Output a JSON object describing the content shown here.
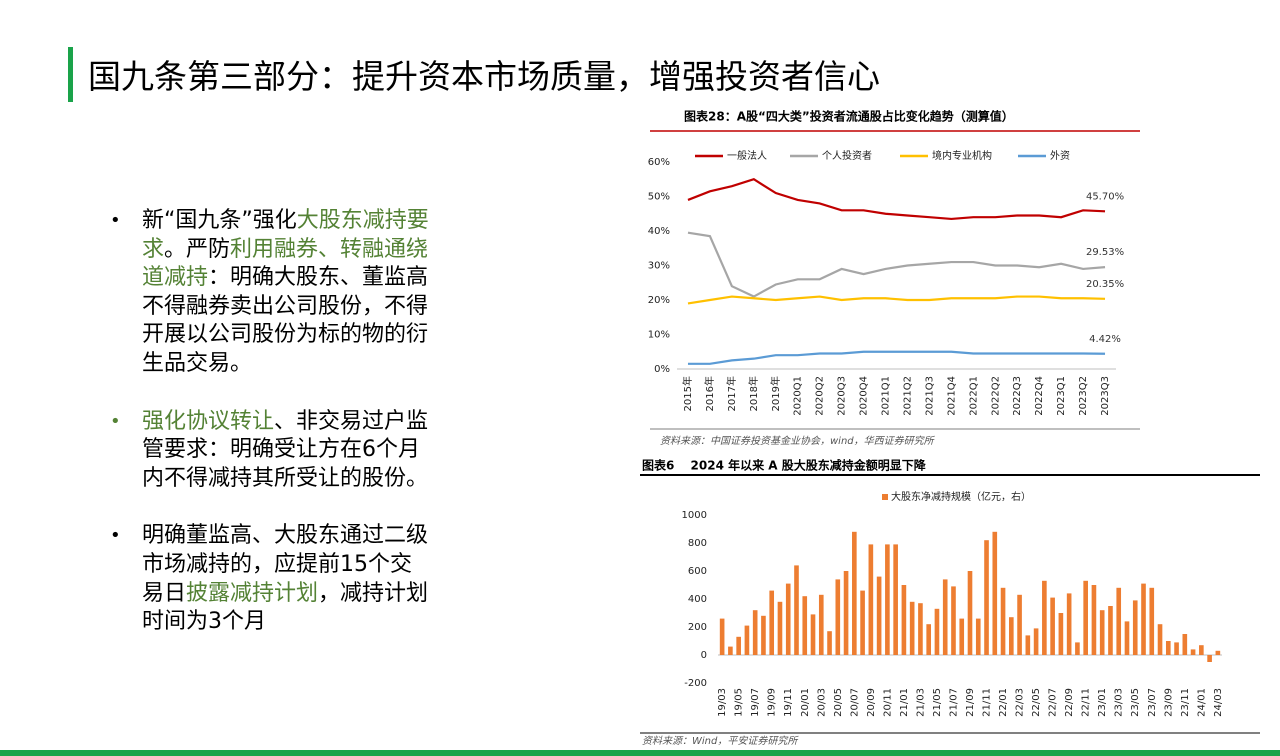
{
  "slide": {
    "title": "国九条第三部分：提升资本市场质量，增强投资者信心",
    "bullets": [
      {
        "segments": [
          {
            "text": "新“国九条”强化",
            "color": "#000000"
          },
          {
            "text": "大股东减持要求",
            "color": "#548235"
          },
          {
            "text": "。严防",
            "color": "#000000"
          },
          {
            "text": "利用融券、转融通绕道减持",
            "color": "#548235"
          },
          {
            "text": "：明确大股东、董监高不得融券卖出公司股份，不得开展以公司股份为标的物的衍生品交易。",
            "color": "#000000"
          }
        ]
      },
      {
        "segments": [
          {
            "text": "强化协议转让",
            "color": "#548235"
          },
          {
            "text": "、非交易过户监管要求：明确受让方在6个月内不得减持其所受让的股份。",
            "color": "#000000"
          }
        ]
      },
      {
        "segments": [
          {
            "text": "明确董监高、大股东通过二级市场减持的，应提前15个交易日",
            "color": "#000000"
          },
          {
            "text": "披露减持计划",
            "color": "#548235"
          },
          {
            "text": "，减持计划时间为3个月",
            "color": "#000000"
          }
        ]
      }
    ]
  },
  "chart_data": [
    {
      "type": "line",
      "title": "图表28：A股“四大类”投资者流通股占比变化趋势（测算值）",
      "source": "资料来源：中国证券投资基金业协会，wind，华西证券研究所",
      "categories": [
        "2015年",
        "2016年",
        "2017年",
        "2018年",
        "2019年",
        "2020Q1",
        "2020Q2",
        "2020Q3",
        "2020Q4",
        "2021Q1",
        "2021Q2",
        "2021Q3",
        "2021Q4",
        "2022Q1",
        "2022Q2",
        "2022Q3",
        "2022Q4",
        "2023Q1",
        "2023Q2",
        "2023Q3"
      ],
      "series": [
        {
          "name": "一般法人",
          "color": "#c00000",
          "values": [
            49,
            51.5,
            53,
            55,
            51,
            49,
            48,
            46,
            46,
            45,
            44.5,
            44,
            43.5,
            44,
            44,
            44.5,
            44.5,
            44,
            46,
            45.7
          ],
          "value_labels": [
            null,
            null,
            null,
            null,
            null,
            null,
            null,
            null,
            null,
            null,
            null,
            null,
            null,
            null,
            null,
            null,
            null,
            null,
            null,
            "45.70%"
          ]
        },
        {
          "name": "个人投资者",
          "color": "#a6a6a6",
          "values": [
            39.5,
            38.5,
            24,
            21,
            24.5,
            26,
            26,
            29,
            27.5,
            29,
            30,
            30.5,
            31,
            31,
            30,
            30,
            29.5,
            30.5,
            29,
            29.53
          ],
          "value_labels": [
            null,
            null,
            null,
            null,
            null,
            null,
            null,
            null,
            null,
            null,
            null,
            null,
            null,
            null,
            null,
            null,
            null,
            null,
            null,
            "29.53%"
          ]
        },
        {
          "name": "境内专业机构",
          "color": "#ffc000",
          "values": [
            19,
            20,
            21,
            20.5,
            20,
            20.5,
            21,
            20,
            20.5,
            20.5,
            20,
            20,
            20.5,
            20.5,
            20.5,
            21,
            21,
            20.5,
            20.5,
            20.35
          ],
          "value_labels": [
            null,
            null,
            null,
            null,
            null,
            null,
            null,
            null,
            null,
            null,
            null,
            null,
            null,
            null,
            null,
            null,
            null,
            null,
            null,
            "20.35%"
          ]
        },
        {
          "name": "外资",
          "color": "#5b9bd5",
          "values": [
            1.5,
            1.5,
            2.5,
            3,
            4,
            4,
            4.5,
            4.5,
            5,
            5,
            5,
            5,
            5,
            4.5,
            4.5,
            4.5,
            4.5,
            4.5,
            4.5,
            4.42
          ],
          "value_labels": [
            null,
            null,
            null,
            null,
            null,
            null,
            null,
            null,
            null,
            null,
            null,
            null,
            null,
            null,
            null,
            null,
            null,
            null,
            null,
            "4.42%"
          ]
        }
      ],
      "ylim": [
        0,
        60
      ],
      "yticks": [
        {
          "value": 0,
          "label": "0%"
        },
        {
          "value": 10,
          "label": "10%"
        },
        {
          "value": 20,
          "label": "20%"
        },
        {
          "value": 30,
          "label": "30%"
        },
        {
          "value": 40,
          "label": "40%"
        },
        {
          "value": 50,
          "label": "50%"
        },
        {
          "value": 60,
          "label": "60%"
        }
      ]
    },
    {
      "type": "bar",
      "title": "图表6　 2024 年以来 A 股大股东减持金额明显下降",
      "source": "资料来源：Wind，平安证券研究所",
      "categories": [
        "19/03",
        null,
        "19/05",
        null,
        "19/07",
        null,
        "19/09",
        null,
        "19/11",
        null,
        "20/01",
        null,
        "20/03",
        null,
        "20/05",
        null,
        "20/07",
        null,
        "20/09",
        null,
        "20/11",
        null,
        "21/01",
        null,
        "21/03",
        null,
        "21/05",
        null,
        "21/07",
        null,
        "21/09",
        null,
        "21/11",
        null,
        "22/01",
        null,
        "22/03",
        null,
        "22/05",
        null,
        "22/07",
        null,
        "22/09",
        null,
        "22/11",
        null,
        "23/01",
        null,
        "23/03",
        null,
        "23/05",
        null,
        "23/07",
        null,
        "23/09",
        null,
        "23/11",
        null,
        "24/01",
        null,
        "24/03"
      ],
      "series": [
        {
          "name": "大股东净减持规模（亿元，右）",
          "color": "#ed7d31",
          "values": [
            260,
            60,
            130,
            210,
            320,
            280,
            460,
            380,
            510,
            640,
            420,
            290,
            430,
            170,
            540,
            600,
            880,
            460,
            790,
            560,
            790,
            790,
            500,
            380,
            370,
            220,
            330,
            540,
            490,
            260,
            600,
            260,
            820,
            880,
            480,
            270,
            430,
            140,
            190,
            530,
            410,
            300,
            440,
            90,
            530,
            500,
            320,
            350,
            480,
            240,
            390,
            510,
            480,
            220,
            100,
            90,
            150,
            40,
            70,
            -50,
            30
          ]
        }
      ],
      "ylim": [
        -200,
        1000
      ],
      "yticks": [
        -200,
        0,
        200,
        400,
        600,
        800,
        1000
      ]
    }
  ]
}
